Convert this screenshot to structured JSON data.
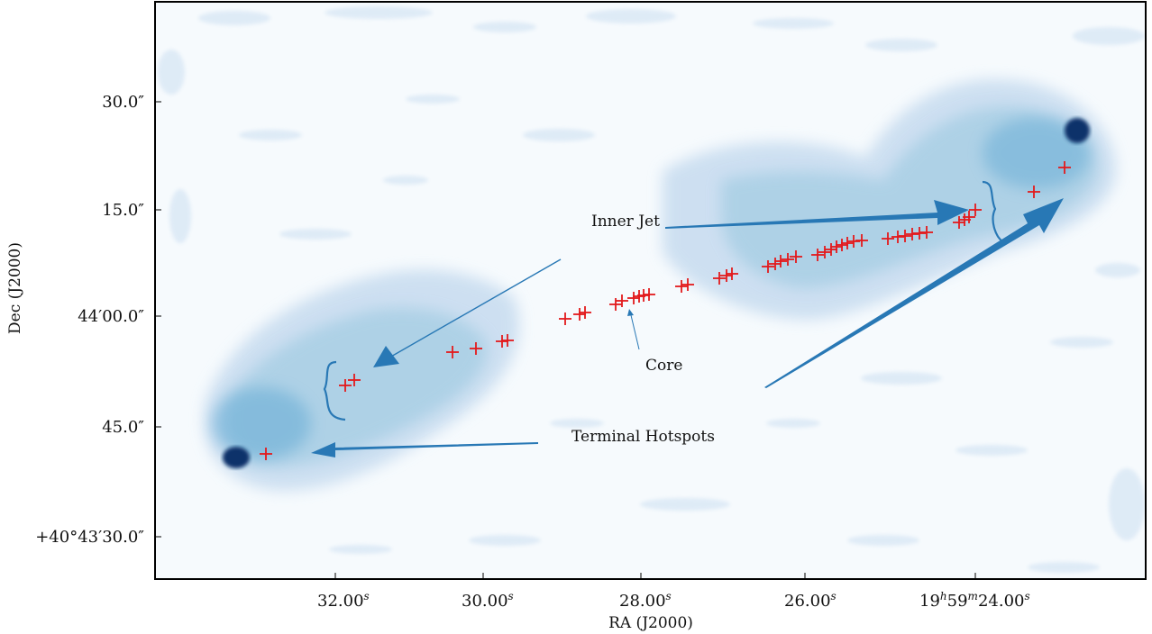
{
  "figure": {
    "x_axis_label": "RA (J2000)",
    "y_axis_label": "Dec (J2000)",
    "x_ticks": [
      {
        "base": "32.00",
        "sup": "s"
      },
      {
        "base": "30.00",
        "sup": "s"
      },
      {
        "base": "28.00",
        "sup": "s"
      },
      {
        "base": "26.00",
        "sup": "s"
      },
      {
        "base": "19",
        "sup": "h",
        "base2": "59",
        "sup2": "m",
        "base3": "24.00",
        "sup3": "s"
      }
    ],
    "y_ticks": [
      "30.0″",
      "15.0″",
      "44′00.0″",
      "45.0″",
      "+40°43′30.0″"
    ],
    "annotations": {
      "inner_jet": "Inner Jet",
      "core": "Core",
      "terminal_hotspots": "Terminal Hotspots"
    },
    "colors": {
      "emission_light": "#c6dbef",
      "emission_mid": "#6baed6",
      "emission_dark": "#08306b",
      "arrow": "#2878b5",
      "marker": "#e31a1c"
    }
  }
}
